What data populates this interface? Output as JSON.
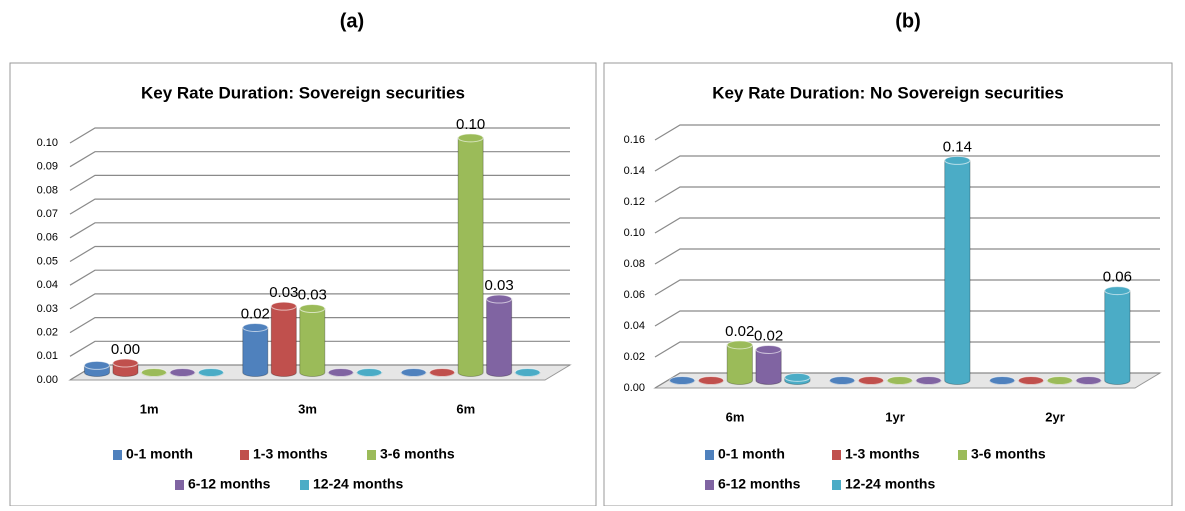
{
  "chart_data": [
    {
      "type": "bar",
      "label": "(a)",
      "title": "Key Rate Duration: Sovereign securities",
      "categories": [
        "1m",
        "3m",
        "6m"
      ],
      "series": [
        {
          "name": "0-1 month",
          "color": "#4f81bd",
          "values": [
            0.003,
            0.019,
            0
          ],
          "value_labels": [
            null,
            "0.02",
            null
          ]
        },
        {
          "name": "1-3 months",
          "color": "#c0504d",
          "values": [
            0.004,
            0.028,
            0
          ],
          "value_labels": [
            "0.00",
            "0.03",
            null
          ]
        },
        {
          "name": "3-6 months",
          "color": "#9bbb59",
          "values": [
            0,
            0.027,
            0.099
          ],
          "value_labels": [
            null,
            "0.03",
            "0.10"
          ]
        },
        {
          "name": "6-12 months",
          "color": "#8064a2",
          "values": [
            0,
            0,
            0.031
          ],
          "value_labels": [
            null,
            null,
            "0.03"
          ]
        },
        {
          "name": "12-24 months",
          "color": "#4bacc6",
          "values": [
            0,
            0,
            0
          ],
          "value_labels": [
            null,
            null,
            null
          ]
        }
      ],
      "ylim": [
        0,
        0.1
      ],
      "yticks": [
        {
          "value": 0,
          "label": "0.00"
        },
        {
          "value": 0.01,
          "label": "0.01"
        },
        {
          "value": 0.02,
          "label": "0.02"
        },
        {
          "value": 0.03,
          "label": "0.03"
        },
        {
          "value": 0.04,
          "label": "0.04"
        },
        {
          "value": 0.05,
          "label": "0.05"
        },
        {
          "value": 0.06,
          "label": "0.06"
        },
        {
          "value": 0.07,
          "label": "0.07"
        },
        {
          "value": 0.08,
          "label": "0.08"
        },
        {
          "value": 0.09,
          "label": "0.09"
        },
        {
          "value": 0.1,
          "label": "0.10"
        }
      ],
      "grid": true
    },
    {
      "type": "bar",
      "label": "(b)",
      "title": "Key Rate Duration: No Sovereign securities",
      "categories": [
        "6m",
        "1yr",
        "2yr"
      ],
      "series": [
        {
          "name": "0-1 month",
          "color": "#4f81bd",
          "values": [
            0,
            0,
            0
          ],
          "value_labels": [
            null,
            null,
            null
          ]
        },
        {
          "name": "1-3 months",
          "color": "#c0504d",
          "values": [
            0,
            0,
            0
          ],
          "value_labels": [
            null,
            null,
            null
          ]
        },
        {
          "name": "3-6 months",
          "color": "#9bbb59",
          "values": [
            0.023,
            0,
            0
          ],
          "value_labels": [
            "0.02",
            null,
            null
          ]
        },
        {
          "name": "6-12 months",
          "color": "#8064a2",
          "values": [
            0.02,
            0,
            0
          ],
          "value_labels": [
            "0.02",
            null,
            null
          ]
        },
        {
          "name": "12-24 months",
          "color": "#4bacc6",
          "values": [
            0.002,
            0.142,
            0.058
          ],
          "value_labels": [
            null,
            "0.14",
            "0.06"
          ]
        }
      ],
      "ylim": [
        0,
        0.16
      ],
      "yticks": [
        {
          "value": 0,
          "label": "0.00"
        },
        {
          "value": 0.02,
          "label": "0.02"
        },
        {
          "value": 0.04,
          "label": "0.04"
        },
        {
          "value": 0.06,
          "label": "0.06"
        },
        {
          "value": 0.08,
          "label": "0.08"
        },
        {
          "value": 0.1,
          "label": "0.10"
        },
        {
          "value": 0.12,
          "label": "0.12"
        },
        {
          "value": 0.14,
          "label": "0.14"
        },
        {
          "value": 0.16,
          "label": "0.16"
        }
      ],
      "grid": true
    }
  ]
}
